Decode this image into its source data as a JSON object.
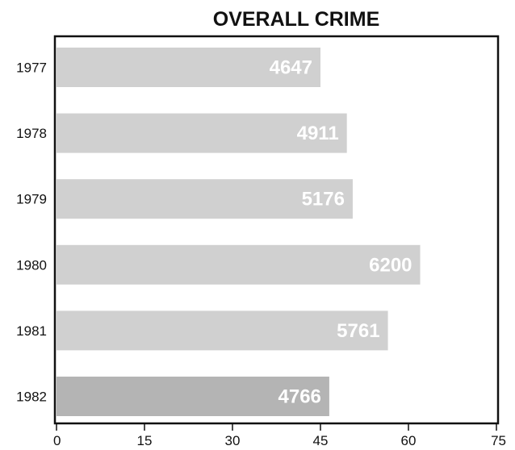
{
  "chart_data": {
    "type": "bar",
    "orientation": "horizontal",
    "title": "OVERALL CRIME",
    "xlabel": "",
    "ylabel": "",
    "categories": [
      "1977",
      "1978",
      "1979",
      "1980",
      "1981",
      "1982"
    ],
    "values": [
      45,
      49.5,
      50.5,
      62,
      56.5,
      46.5
    ],
    "data_labels": [
      "4647",
      "4911",
      "5176",
      "6200",
      "5761",
      "4766"
    ],
    "xlim": [
      0,
      75
    ],
    "xticks": [
      "0",
      "15",
      "30",
      "45",
      "60",
      "75"
    ],
    "grid": false,
    "legend": "none",
    "bar_colors": [
      "#d0d0d0",
      "#d0d0d0",
      "#d0d0d0",
      "#d0d0d0",
      "#d0d0d0",
      "#b4b4b4"
    ],
    "frame_color": "#111111"
  }
}
